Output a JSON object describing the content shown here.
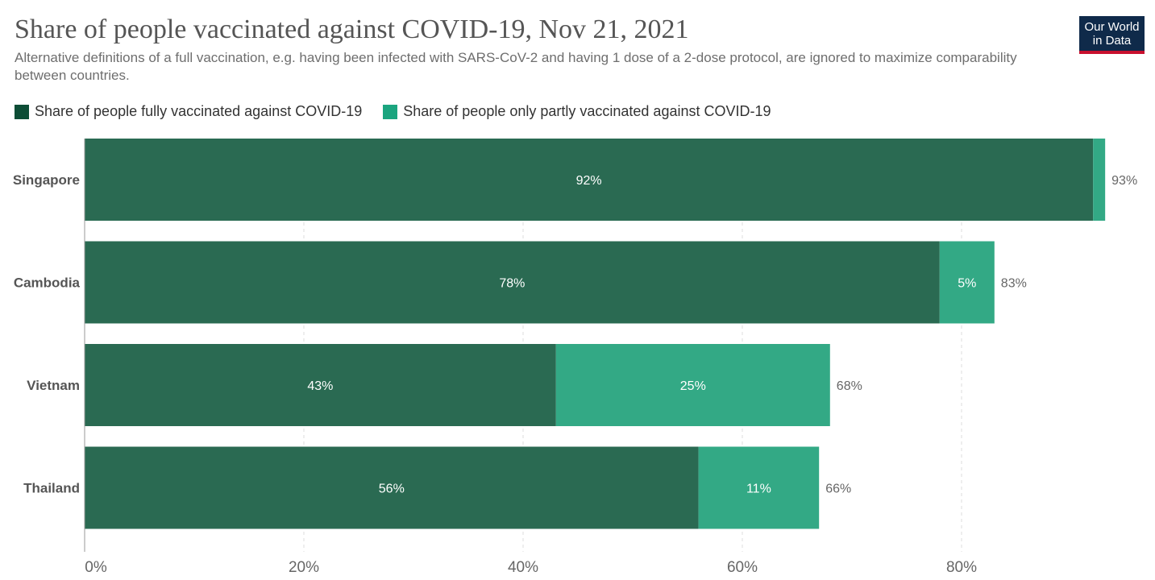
{
  "header": {
    "title": "Share of people vaccinated against COVID-19, Nov 21, 2021",
    "subtitle": "Alternative definitions of a full vaccination, e.g. having been infected with SARS-CoV-2 and having 1 dose of a 2-dose protocol, are ignored to maximize comparability between countries.",
    "logo_line1": "Our World",
    "logo_line2": "in Data"
  },
  "colors": {
    "fully": "#2a6a52",
    "partly": "#33a985",
    "legend_fully": "#0d4d36",
    "legend_partly": "#1ba57f",
    "logo_bg": "#0f2a4a",
    "logo_accent": "#c8102e"
  },
  "chart_data": {
    "type": "bar",
    "orientation": "horizontal",
    "stacked": true,
    "title": "Share of people vaccinated against COVID-19, Nov 21, 2021",
    "categories": [
      "Singapore",
      "Cambodia",
      "Vietnam",
      "Thailand"
    ],
    "series": [
      {
        "name": "Share of people fully vaccinated against COVID-19",
        "values": [
          92,
          78,
          43,
          56
        ],
        "labels": [
          "92%",
          "78%",
          "43%",
          "56%"
        ]
      },
      {
        "name": "Share of people only partly vaccinated against COVID-19",
        "values": [
          1.1,
          5,
          25,
          11
        ],
        "labels": [
          "",
          "5%",
          "25%",
          "11%"
        ]
      }
    ],
    "totals": [
      "93%",
      "83%",
      "68%",
      "66%"
    ],
    "xlim": [
      0,
      90
    ],
    "xticks": [
      0,
      20,
      40,
      60,
      80
    ],
    "xtick_labels": [
      "0%",
      "20%",
      "40%",
      "60%",
      "80%"
    ],
    "grid": true,
    "legend_position": "top-left"
  }
}
